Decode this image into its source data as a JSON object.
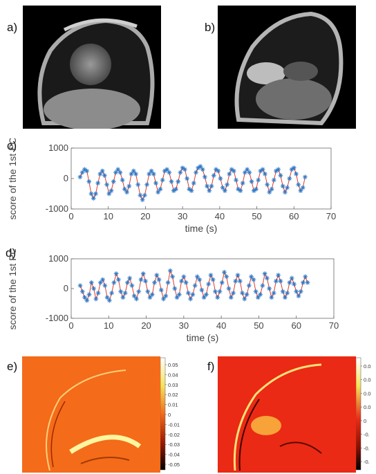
{
  "panels": {
    "a": "a)",
    "b": "b)",
    "c": "c)",
    "d": "d)",
    "e": "e)",
    "f": "f)"
  },
  "colors": {
    "marker": "#2f79c6",
    "line": "#e03a2a",
    "map_e": "#f46b1a",
    "map_f": "#ea2a14"
  },
  "chart_data": [
    {
      "type": "line",
      "panel": "c",
      "xlabel": "time (s)",
      "ylabel": "score of the 1st PC",
      "xlim": [
        0,
        70
      ],
      "ylim": [
        -1000,
        1000
      ],
      "xticks": [
        "0",
        "10",
        "20",
        "30",
        "40",
        "50",
        "60",
        "70"
      ],
      "yticks": [
        "1000",
        "0",
        "-1000"
      ],
      "x": [
        2.4,
        3.0,
        3.6,
        4.2,
        4.8,
        5.4,
        6.0,
        6.6,
        7.2,
        7.8,
        8.4,
        9.0,
        9.6,
        10.2,
        10.8,
        11.4,
        12.0,
        12.6,
        13.2,
        13.8,
        14.4,
        15.0,
        15.6,
        16.2,
        16.8,
        17.4,
        18.0,
        18.6,
        19.2,
        19.8,
        20.4,
        21.0,
        21.6,
        22.2,
        22.8,
        23.4,
        24.0,
        24.6,
        25.2,
        25.8,
        26.4,
        27.0,
        27.6,
        28.2,
        28.8,
        29.4,
        30.0,
        30.6,
        31.2,
        31.8,
        32.4,
        33.0,
        33.6,
        34.2,
        34.8,
        35.4,
        36.0,
        36.6,
        37.2,
        37.8,
        38.4,
        39.0,
        39.6,
        40.2,
        40.8,
        41.4,
        42.0,
        42.6,
        43.2,
        43.8,
        44.4,
        45.0,
        45.6,
        46.2,
        46.8,
        47.4,
        48.0,
        48.6,
        49.2,
        49.8,
        50.4,
        51.0,
        51.6,
        52.2,
        52.8,
        53.4,
        54.0,
        54.6,
        55.2,
        55.8,
        56.4,
        57.0,
        57.6,
        58.2,
        58.8,
        59.4,
        60.0,
        60.6,
        61.2,
        61.8,
        62.4,
        63.0
      ],
      "y": [
        50,
        200,
        300,
        250,
        -100,
        -500,
        -650,
        -500,
        -150,
        150,
        250,
        100,
        -200,
        -500,
        -400,
        -100,
        200,
        300,
        200,
        -50,
        -350,
        -450,
        -250,
        150,
        250,
        150,
        -200,
        -550,
        -700,
        -550,
        -200,
        150,
        250,
        150,
        -150,
        -450,
        -350,
        -50,
        250,
        300,
        200,
        -100,
        -400,
        -350,
        -100,
        200,
        350,
        300,
        0,
        -350,
        -400,
        -150,
        200,
        350,
        400,
        300,
        50,
        -250,
        -400,
        -250,
        100,
        300,
        250,
        0,
        -300,
        -400,
        -200,
        150,
        300,
        250,
        -50,
        -350,
        -400,
        -150,
        200,
        300,
        200,
        -100,
        -400,
        -350,
        -50,
        250,
        300,
        150,
        -200,
        -450,
        -350,
        -50,
        250,
        300,
        100,
        -250,
        -450,
        -300,
        0,
        300,
        350,
        150,
        -200,
        -400,
        -300,
        50
      ]
    },
    {
      "type": "line",
      "panel": "d",
      "xlabel": "time (s)",
      "ylabel": "score of the 1st PC",
      "xlim": [
        0,
        70
      ],
      "ylim": [
        -1000,
        1000
      ],
      "xticks": [
        "0",
        "10",
        "20",
        "30",
        "40",
        "50",
        "60",
        "70"
      ],
      "yticks": [
        "1000",
        "0",
        "-1000"
      ],
      "x": [
        2.4,
        3.0,
        3.6,
        4.2,
        4.8,
        5.4,
        6.0,
        6.6,
        7.2,
        7.8,
        8.4,
        9.0,
        9.6,
        10.2,
        10.8,
        11.4,
        12.0,
        12.6,
        13.2,
        13.8,
        14.4,
        15.0,
        15.6,
        16.2,
        16.8,
        17.4,
        18.0,
        18.6,
        19.2,
        19.8,
        20.4,
        21.0,
        21.6,
        22.2,
        22.8,
        23.4,
        24.0,
        24.6,
        25.2,
        25.8,
        26.4,
        27.0,
        27.6,
        28.2,
        28.8,
        29.4,
        30.0,
        30.6,
        31.2,
        31.8,
        32.4,
        33.0,
        33.6,
        34.2,
        34.8,
        35.4,
        36.0,
        36.6,
        37.2,
        37.8,
        38.4,
        39.0,
        39.6,
        40.2,
        40.8,
        41.4,
        42.0,
        42.6,
        43.2,
        43.8,
        44.4,
        45.0,
        45.6,
        46.2,
        46.8,
        47.4,
        48.0,
        48.6,
        49.2,
        49.8,
        50.4,
        51.0,
        51.6,
        52.2,
        52.8,
        53.4,
        54.0,
        54.6,
        55.2,
        55.8,
        56.4,
        57.0,
        57.6,
        58.2,
        58.8,
        59.4,
        60.0,
        60.6,
        61.2,
        61.8,
        62.4,
        63.0
      ],
      "y": [
        100,
        -100,
        -300,
        -400,
        -200,
        200,
        0,
        -350,
        -150,
        200,
        300,
        100,
        -300,
        -400,
        -150,
        200,
        500,
        300,
        -100,
        -300,
        -150,
        200,
        350,
        100,
        -250,
        -350,
        -100,
        300,
        500,
        250,
        -100,
        -300,
        -200,
        200,
        450,
        300,
        -50,
        -350,
        -250,
        200,
        600,
        400,
        0,
        -300,
        -200,
        250,
        400,
        200,
        -150,
        -350,
        -200,
        100,
        400,
        300,
        -50,
        -300,
        -200,
        150,
        450,
        300,
        -100,
        -300,
        -100,
        200,
        550,
        400,
        0,
        -300,
        -150,
        250,
        450,
        250,
        -150,
        -350,
        -200,
        100,
        400,
        300,
        -100,
        -300,
        -200,
        100,
        500,
        350,
        0,
        -300,
        -150,
        250,
        450,
        250,
        -100,
        -300,
        -150,
        200,
        350,
        150,
        -100,
        -250,
        -100,
        200,
        400,
        200
      ]
    }
  ],
  "colorbar_e": {
    "ticks": [
      "0.05",
      "0.04",
      "0.03",
      "0.02",
      "0.01",
      "0",
      "-0.01",
      "-0.02",
      "-0.03",
      "-0.04",
      "-0.05"
    ]
  },
  "colorbar_f": {
    "ticks": [
      "0.0",
      "0.0",
      "0.0",
      "0.0",
      "0",
      "-0.",
      "-0.",
      "-0."
    ]
  }
}
